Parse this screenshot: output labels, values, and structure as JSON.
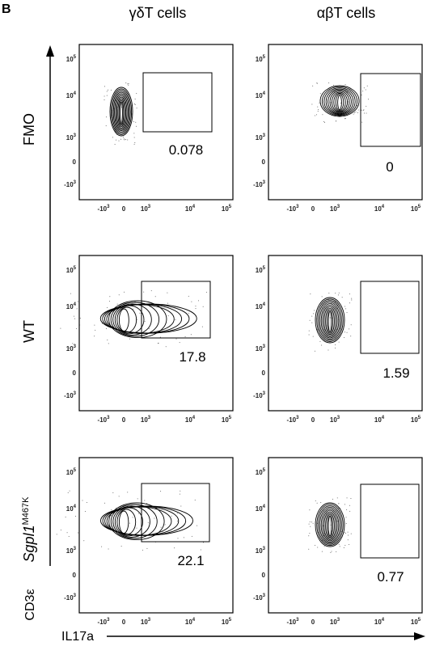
{
  "panel_label": "B",
  "columns": [
    "γδT cells",
    "αβT cells"
  ],
  "rows": [
    {
      "label": "FMO"
    },
    {
      "label": "WT"
    },
    {
      "label": "Sgpl1",
      "superscript": "M467K"
    }
  ],
  "gates": [
    [
      "0.078",
      "0"
    ],
    [
      "17.8",
      "1.59"
    ],
    [
      "22.1",
      "0.77"
    ]
  ],
  "y_axis_label": "CD3ε",
  "x_axis_label": "IL17a",
  "y_ticks": [
    {
      "base": "10",
      "exp": "5"
    },
    {
      "base": "10",
      "exp": "4"
    },
    {
      "base": "10",
      "exp": "3"
    },
    {
      "base": "0"
    },
    {
      "base": "-10",
      "exp": "3"
    }
  ],
  "x_ticks": [
    {
      "base": "-10",
      "exp": "3"
    },
    {
      "base": "0"
    },
    {
      "base": "10",
      "exp": "3"
    },
    {
      "base": "10",
      "exp": "4"
    },
    {
      "base": "10",
      "exp": "5"
    }
  ]
}
